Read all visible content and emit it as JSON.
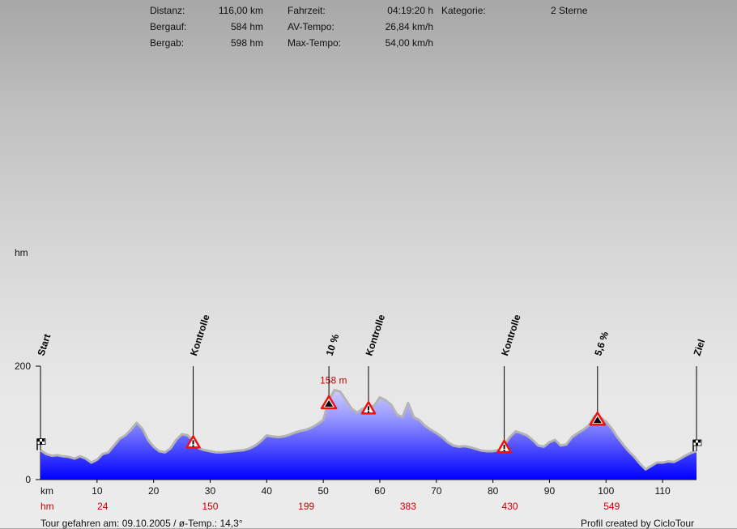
{
  "stats": {
    "distanz_label": "Distanz:",
    "distanz_value": "116,00 km",
    "bergauf_label": "Bergauf:",
    "bergauf_value": "584 hm",
    "bergab_label": "Bergab:",
    "bergab_value": "598 hm",
    "fahrzeit_label": "Fahrzeit:",
    "fahrzeit_value": "04:19:20 h",
    "avtempo_label": "AV-Tempo:",
    "avtempo_value": "26,84 km/h",
    "maxtempo_label": "Max-Tempo:",
    "maxtempo_value": "54,00 km/h",
    "kategorie_label": "Kategorie:",
    "kategorie_value": "2 Sterne"
  },
  "footer": {
    "left": "Tour gefahren am: 09.10.2005  /  ø-Temp.: 14,3°",
    "right": "Profil created by CicloTour"
  },
  "colors": {
    "fill_top": "#ccccff",
    "fill_bottom": "#0000ff",
    "outline": "#b4b4b4",
    "red": "#cc0000",
    "marker_red": "#ee1111"
  },
  "chart_data": {
    "type": "area",
    "ylabel": "hm",
    "xlabel": "km",
    "ylim": [
      0,
      200
    ],
    "xlim": [
      0,
      116
    ],
    "yticks": [
      0,
      200
    ],
    "xticks": [
      10,
      20,
      30,
      40,
      50,
      60,
      70,
      80,
      90,
      100,
      110
    ],
    "peak_annotation": "158 m",
    "cumulative_label": "hm",
    "cumulative_climb": [
      {
        "km": 11,
        "value": "24"
      },
      {
        "km": 30,
        "value": "150"
      },
      {
        "km": 47,
        "value": "199"
      },
      {
        "km": 65,
        "value": "383"
      },
      {
        "km": 83,
        "value": "430"
      },
      {
        "km": 101,
        "value": "549"
      }
    ],
    "markers": [
      {
        "km": 0,
        "label": "Start",
        "icon": "start-flag-icon"
      },
      {
        "km": 27,
        "label": "Kontrolle",
        "icon": "warning-icon"
      },
      {
        "km": 51,
        "label": "10 %",
        "icon": "climb-icon"
      },
      {
        "km": 58,
        "label": "Kontrolle",
        "icon": "warning-icon"
      },
      {
        "km": 82,
        "label": "Kontrolle",
        "icon": "warning-icon"
      },
      {
        "km": 98.5,
        "label": "5,6 %",
        "icon": "climb-icon"
      },
      {
        "km": 116,
        "label": "Ziel",
        "icon": "finish-flag-icon"
      }
    ],
    "profile": [
      [
        0,
        52
      ],
      [
        1,
        45
      ],
      [
        2,
        42
      ],
      [
        3,
        43
      ],
      [
        4,
        41
      ],
      [
        5,
        40
      ],
      [
        6,
        37
      ],
      [
        7,
        41
      ],
      [
        8,
        37
      ],
      [
        9,
        30
      ],
      [
        10,
        35
      ],
      [
        11,
        45
      ],
      [
        12,
        48
      ],
      [
        13,
        60
      ],
      [
        14,
        72
      ],
      [
        15,
        78
      ],
      [
        16,
        88
      ],
      [
        17,
        100
      ],
      [
        18,
        90
      ],
      [
        19,
        70
      ],
      [
        20,
        58
      ],
      [
        21,
        50
      ],
      [
        22,
        48
      ],
      [
        23,
        55
      ],
      [
        24,
        70
      ],
      [
        25,
        80
      ],
      [
        26,
        78
      ],
      [
        27,
        68
      ],
      [
        28,
        55
      ],
      [
        29,
        52
      ],
      [
        30,
        50
      ],
      [
        31,
        48
      ],
      [
        32,
        48
      ],
      [
        33,
        49
      ],
      [
        34,
        50
      ],
      [
        35,
        51
      ],
      [
        36,
        52
      ],
      [
        37,
        55
      ],
      [
        38,
        60
      ],
      [
        39,
        68
      ],
      [
        40,
        78
      ],
      [
        41,
        76
      ],
      [
        42,
        75
      ],
      [
        43,
        76
      ],
      [
        44,
        79
      ],
      [
        45,
        83
      ],
      [
        46,
        86
      ],
      [
        47,
        88
      ],
      [
        48,
        92
      ],
      [
        49,
        98
      ],
      [
        50,
        105
      ],
      [
        51,
        140
      ],
      [
        52,
        158
      ],
      [
        53,
        155
      ],
      [
        54,
        140
      ],
      [
        55,
        125
      ],
      [
        56,
        118
      ],
      [
        57,
        125
      ],
      [
        58,
        128
      ],
      [
        59,
        130
      ],
      [
        60,
        145
      ],
      [
        61,
        140
      ],
      [
        62,
        132
      ],
      [
        63,
        115
      ],
      [
        64,
        110
      ],
      [
        65,
        135
      ],
      [
        66,
        110
      ],
      [
        67,
        105
      ],
      [
        68,
        95
      ],
      [
        69,
        88
      ],
      [
        70,
        82
      ],
      [
        71,
        75
      ],
      [
        72,
        66
      ],
      [
        73,
        60
      ],
      [
        74,
        58
      ],
      [
        75,
        59
      ],
      [
        76,
        57
      ],
      [
        77,
        54
      ],
      [
        78,
        51
      ],
      [
        79,
        50
      ],
      [
        80,
        50
      ],
      [
        81,
        52
      ],
      [
        82,
        60
      ],
      [
        83,
        75
      ],
      [
        84,
        85
      ],
      [
        85,
        82
      ],
      [
        86,
        78
      ],
      [
        87,
        70
      ],
      [
        88,
        60
      ],
      [
        89,
        58
      ],
      [
        90,
        66
      ],
      [
        91,
        70
      ],
      [
        92,
        60
      ],
      [
        93,
        62
      ],
      [
        94,
        75
      ],
      [
        95,
        82
      ],
      [
        96,
        88
      ],
      [
        97,
        96
      ],
      [
        98,
        112
      ],
      [
        99,
        110
      ],
      [
        100,
        102
      ],
      [
        101,
        90
      ],
      [
        102,
        75
      ],
      [
        103,
        62
      ],
      [
        104,
        50
      ],
      [
        105,
        40
      ],
      [
        106,
        28
      ],
      [
        107,
        18
      ],
      [
        108,
        24
      ],
      [
        109,
        30
      ],
      [
        110,
        30
      ],
      [
        111,
        32
      ],
      [
        112,
        31
      ],
      [
        113,
        36
      ],
      [
        114,
        42
      ],
      [
        115,
        47
      ],
      [
        116,
        50
      ]
    ]
  }
}
